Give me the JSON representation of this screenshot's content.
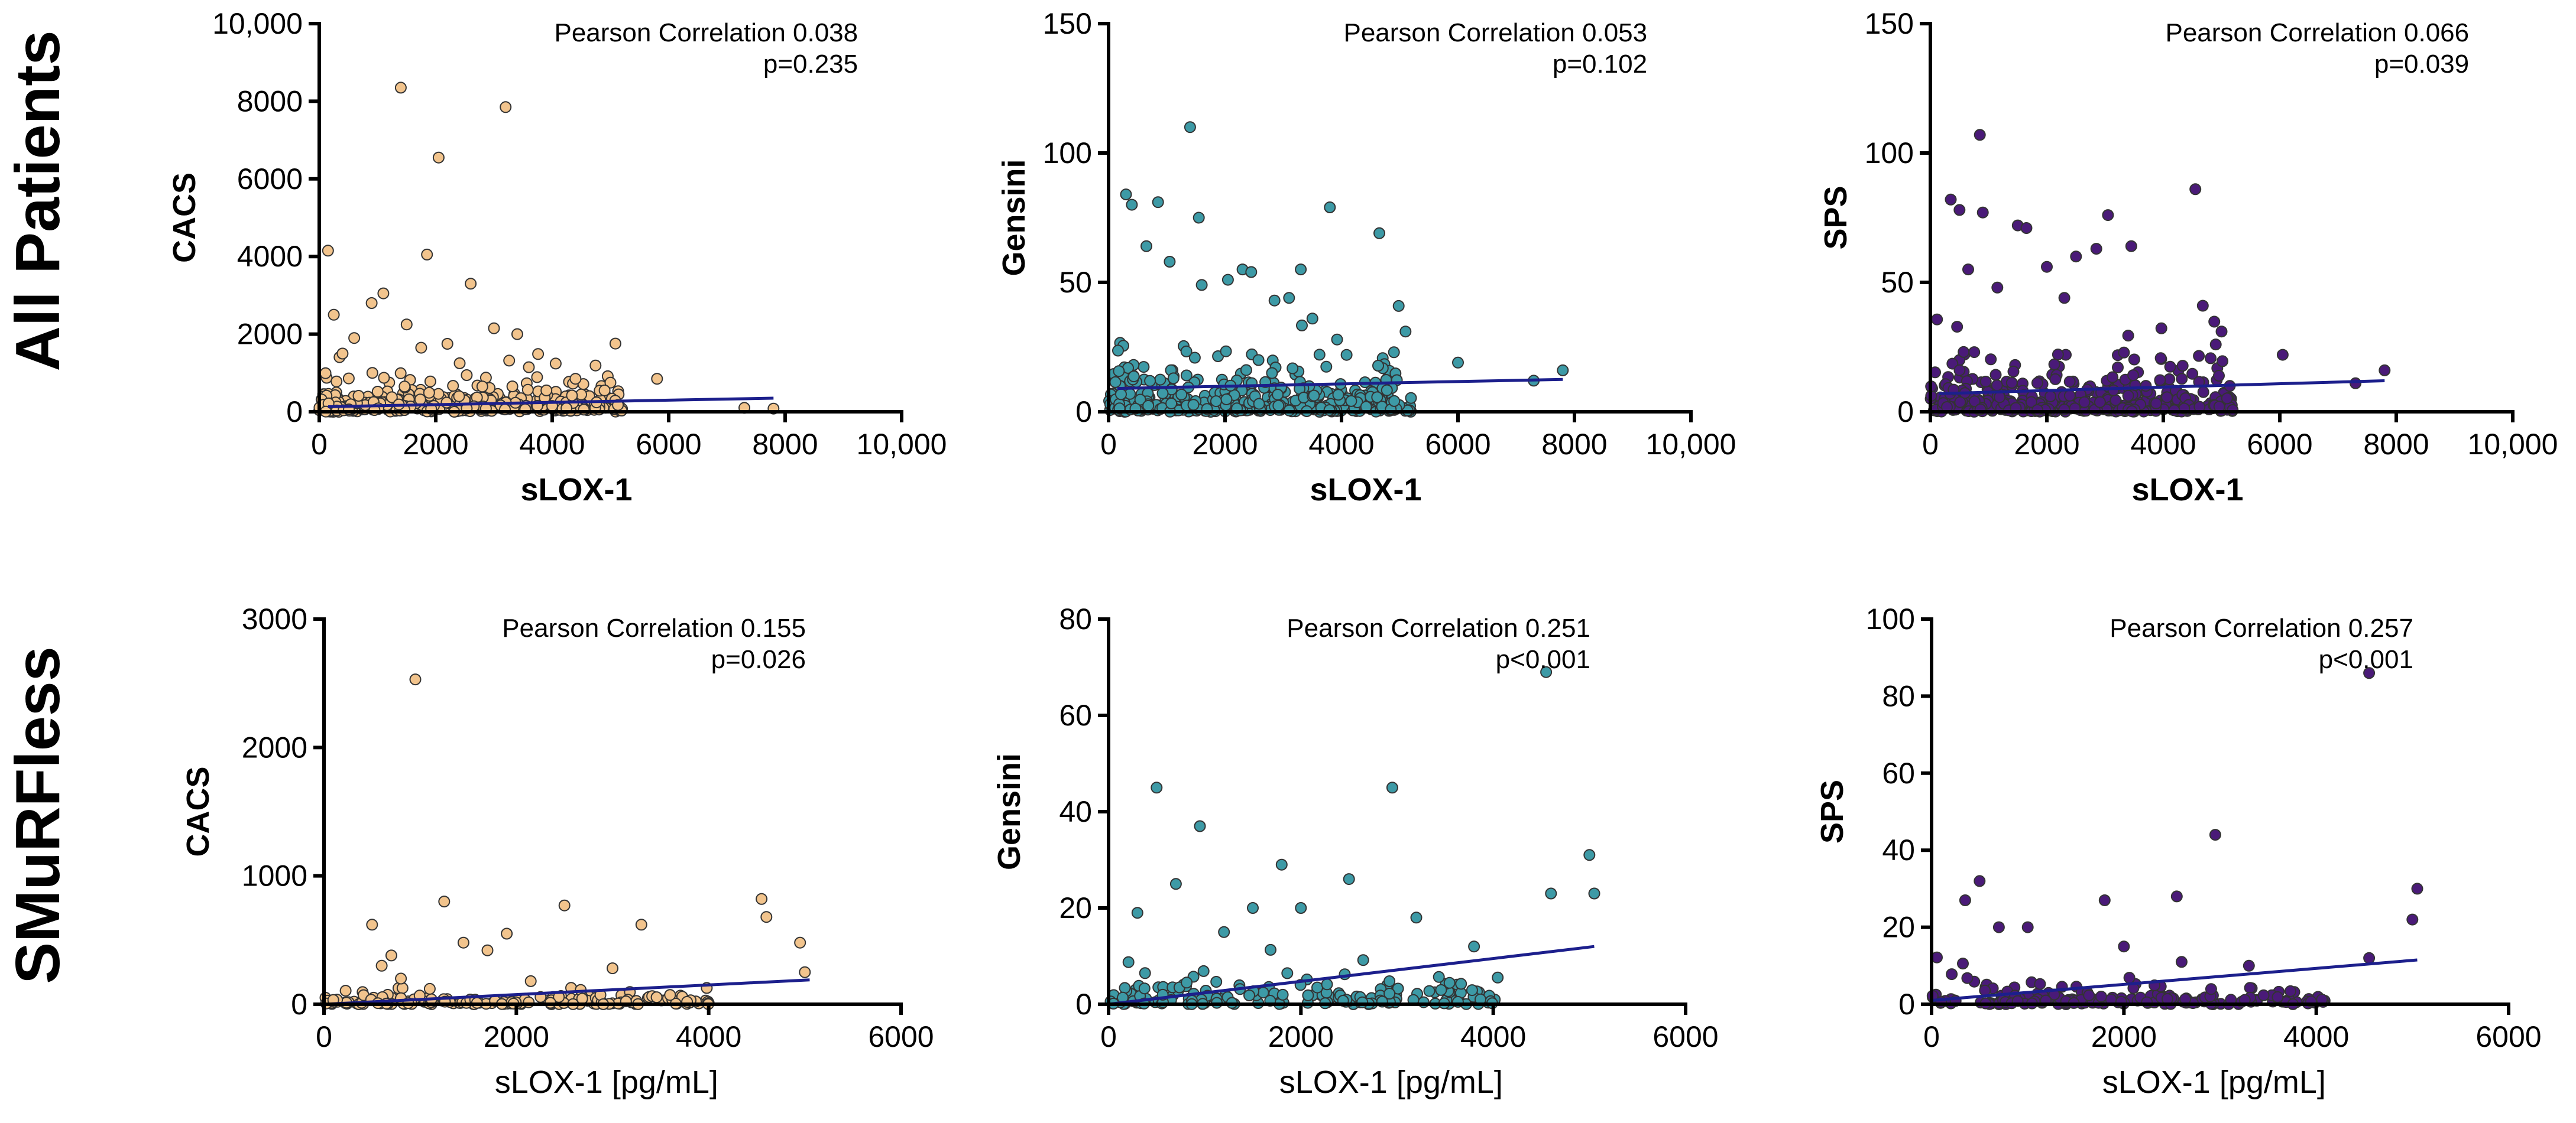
{
  "row_labels": [
    "All Patients",
    "SMuRFless"
  ],
  "colors": {
    "axis": "#000000",
    "fit_line": "#1c1f8c",
    "point_outline": "#333333"
  },
  "chart_data": [
    {
      "type": "scatter",
      "row": 0,
      "col": 0,
      "color": "#f2c48d",
      "xlabel": "sLOX-1",
      "ylabel": "CACS",
      "xlim": [
        0,
        10000
      ],
      "ylim": [
        0,
        10000
      ],
      "xticks": [
        0,
        2000,
        4000,
        6000,
        8000,
        10000
      ],
      "xtick_labels": [
        "0",
        "2000",
        "4000",
        "6000",
        "8000",
        "10,000"
      ],
      "yticks": [
        0,
        2000,
        4000,
        6000,
        8000,
        10000
      ],
      "ytick_labels": [
        "0",
        "2000",
        "4000",
        "6000",
        "8000",
        "10,000"
      ],
      "annotation_lines": [
        "Pearson Correlation 0.038",
        "p=0.235"
      ],
      "fit": {
        "x": [
          150,
          7800
        ],
        "y": [
          130,
          350
        ]
      },
      "x": [
        1400,
        3200,
        2050,
        150,
        1850,
        2600,
        1100,
        250,
        900,
        1500,
        1750,
        3000,
        3400,
        2200,
        5800,
        4400,
        5000,
        4900,
        3900,
        600,
        400,
        2800,
        2400,
        4000,
        7300,
        7800
      ],
      "y": [
        8350,
        7850,
        6550,
        4150,
        4050,
        3300,
        3050,
        2500,
        2800,
        2250,
        1650,
        2150,
        2000,
        1750,
        850,
        850,
        750,
        550,
        550,
        1900,
        1500,
        650,
        400,
        150,
        100,
        80
      ],
      "density": {
        "seed": 11,
        "n": 380,
        "xmax": 5200,
        "yscale": 300
      }
    },
    {
      "type": "scatter",
      "row": 0,
      "col": 1,
      "color": "#3d9aa6",
      "xlabel": "sLOX-1",
      "ylabel": "Gensini",
      "xlim": [
        0,
        10000
      ],
      "ylim": [
        0,
        150
      ],
      "xticks": [
        0,
        2000,
        4000,
        6000,
        8000,
        10000
      ],
      "xtick_labels": [
        "0",
        "2000",
        "4000",
        "6000",
        "8000",
        "10,000"
      ],
      "yticks": [
        0,
        50,
        100,
        150
      ],
      "ytick_labels": [
        "0",
        "50",
        "100",
        "150"
      ],
      "annotation_lines": [
        "Pearson Correlation 0.053",
        "p=0.102"
      ],
      "fit": {
        "x": [
          150,
          7800
        ],
        "y": [
          9,
          12.5
        ]
      },
      "x": [
        1400,
        300,
        850,
        400,
        1550,
        3800,
        4650,
        2300,
        2450,
        3300,
        3100,
        2050,
        1600,
        5100,
        4900,
        6000,
        7300,
        7800,
        650,
        1050,
        2850,
        3500
      ],
      "y": [
        110,
        84,
        81,
        80,
        75,
        79,
        69,
        55,
        54,
        55,
        44,
        51,
        49,
        31,
        23,
        19,
        12,
        16,
        64,
        58,
        43,
        36
      ],
      "density": {
        "seed": 23,
        "n": 420,
        "xmax": 5200,
        "yscale": 7
      }
    },
    {
      "type": "scatter",
      "row": 0,
      "col": 2,
      "color": "#4a1a78",
      "xlabel": "sLOX-1",
      "ylabel": "SPS",
      "xlim": [
        0,
        10000
      ],
      "ylim": [
        0,
        150
      ],
      "xticks": [
        0,
        2000,
        4000,
        6000,
        8000,
        10000
      ],
      "xtick_labels": [
        "0",
        "2000",
        "4000",
        "6000",
        "8000",
        "10,000"
      ],
      "yticks": [
        0,
        50,
        100,
        150
      ],
      "ytick_labels": [
        "0",
        "50",
        "100",
        "150"
      ],
      "annotation_lines": [
        "Pearson Correlation 0.066",
        "p=0.039"
      ],
      "fit": {
        "x": [
          150,
          7800
        ],
        "y": [
          7,
          12
        ]
      },
      "x": [
        850,
        4550,
        350,
        500,
        900,
        1500,
        1650,
        2850,
        3050,
        3450,
        2500,
        2000,
        5000,
        4900,
        6050,
        7300,
        7800,
        650,
        1150,
        2300
      ],
      "y": [
        107,
        86,
        82,
        78,
        77,
        72,
        71,
        63,
        76,
        64,
        60,
        56,
        31,
        26,
        22,
        11,
        16,
        55,
        48,
        44
      ],
      "density": {
        "seed": 37,
        "n": 420,
        "xmax": 5200,
        "yscale": 7
      }
    },
    {
      "type": "scatter",
      "row": 1,
      "col": 0,
      "color": "#f2c48d",
      "xlabel": "sLOX-1 [pg/mL]",
      "ylabel": "CACS",
      "xlim": [
        0,
        6000
      ],
      "ylim": [
        0,
        3000
      ],
      "xticks": [
        0,
        2000,
        4000,
        6000
      ],
      "xtick_labels": [
        "0",
        "2000",
        "4000",
        "6000"
      ],
      "yticks": [
        0,
        1000,
        2000,
        3000
      ],
      "ytick_labels": [
        "0",
        "1000",
        "2000",
        "3000"
      ],
      "annotation_lines": [
        "Pearson  Correlation 0.155",
        "p=0.026"
      ],
      "fit": {
        "x": [
          0,
          5050
        ],
        "y": [
          0,
          190
        ]
      },
      "x": [
        950,
        500,
        1250,
        1450,
        1900,
        2500,
        3000,
        3300,
        4550,
        4600,
        4950,
        5000,
        1700,
        700,
        800,
        600,
        2150,
        1100
      ],
      "y": [
        2530,
        620,
        800,
        480,
        550,
        770,
        280,
        620,
        820,
        680,
        480,
        250,
        420,
        380,
        200,
        300,
        180,
        120
      ],
      "density": {
        "seed": 53,
        "n": 170,
        "xmax": 4000,
        "yscale": 40
      }
    },
    {
      "type": "scatter",
      "row": 1,
      "col": 1,
      "color": "#3d9aa6",
      "xlabel": "sLOX-1 [pg/mL]",
      "ylabel": "Gensini",
      "xlim": [
        0,
        6000
      ],
      "ylim": [
        0,
        80
      ],
      "xticks": [
        0,
        2000,
        4000,
        6000
      ],
      "xtick_labels": [
        "0",
        "2000",
        "4000",
        "6000"
      ],
      "yticks": [
        0,
        20,
        40,
        60,
        80
      ],
      "ytick_labels": [
        "0",
        "20",
        "40",
        "60",
        "80"
      ],
      "annotation_lines": [
        "Pearson  Correlation 0.251",
        "p<0.001"
      ],
      "fit": {
        "x": [
          0,
          5050
        ],
        "y": [
          0,
          12
        ]
      },
      "x": [
        4550,
        500,
        2950,
        950,
        5000,
        4600,
        5050,
        1800,
        2500,
        3200,
        700,
        1500,
        3800,
        2000,
        1200,
        300
      ],
      "y": [
        69,
        45,
        45,
        37,
        31,
        23,
        23,
        29,
        26,
        18,
        25,
        20,
        12,
        20,
        15,
        19
      ],
      "density": {
        "seed": 71,
        "n": 170,
        "xmax": 4100,
        "yscale": 2.2
      }
    },
    {
      "type": "scatter",
      "row": 1,
      "col": 2,
      "color": "#4a1a78",
      "xlabel": "sLOX-1 [pg/mL]",
      "ylabel": "SPS",
      "xlim": [
        0,
        6000
      ],
      "ylim": [
        0,
        100
      ],
      "xticks": [
        0,
        2000,
        4000,
        6000
      ],
      "xtick_labels": [
        "0",
        "2000",
        "4000",
        "6000"
      ],
      "yticks": [
        0,
        20,
        40,
        60,
        80,
        100
      ],
      "ytick_labels": [
        "0",
        "20",
        "40",
        "60",
        "80",
        "100"
      ],
      "annotation_lines": [
        "Pearson  Correlation 0.257",
        "p<0.001"
      ],
      "fit": {
        "x": [
          0,
          5050
        ],
        "y": [
          1,
          11.5
        ]
      },
      "x": [
        4550,
        2950,
        500,
        350,
        1800,
        2550,
        5050,
        5000,
        4550,
        700,
        1000,
        2000,
        3300,
        2600
      ],
      "y": [
        86,
        44,
        32,
        27,
        27,
        28,
        30,
        22,
        12,
        20,
        20,
        15,
        10,
        11
      ],
      "density": {
        "seed": 89,
        "n": 170,
        "xmax": 4100,
        "yscale": 2.2
      }
    }
  ]
}
